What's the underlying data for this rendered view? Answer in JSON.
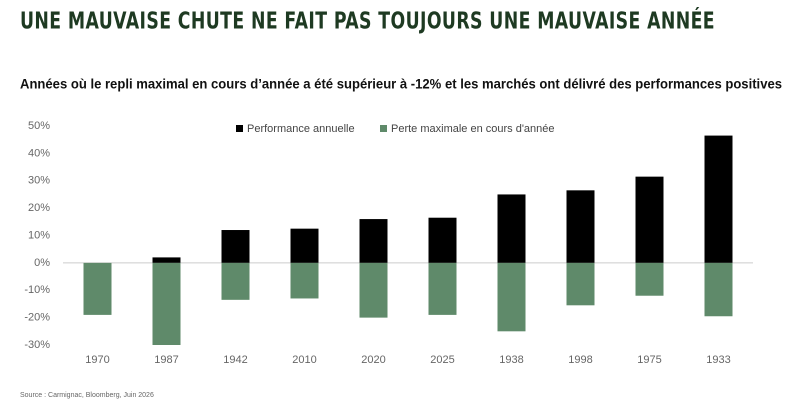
{
  "chart_data": {
    "type": "bar",
    "title": "UNE MAUVAISE CHUTE NE FAIT PAS TOUJOURS UNE MAUVAISE ANNÉE",
    "subtitle": "Années où le repli maximal en cours d’année a été supérieur à -12% et les marchés ont délivré des performances positives",
    "categories": [
      "1970",
      "1987",
      "1942",
      "2010",
      "2020",
      "2025",
      "1938",
      "1998",
      "1975",
      "1933"
    ],
    "series": [
      {
        "name": "Performance annuelle",
        "color": "#000000",
        "values": [
          0,
          2,
          12,
          12.5,
          16,
          16.5,
          25,
          26.5,
          31.5,
          46.5
        ]
      },
      {
        "name": "Perte maximale en cours d'année",
        "color": "#5f8a6a",
        "values": [
          -19,
          -30,
          -13.5,
          -13,
          -20,
          -19,
          -25,
          -15.5,
          -12,
          -19.5
        ]
      }
    ],
    "ylim": [
      -30,
      50
    ],
    "yticks": [
      {
        "value": -30,
        "label": "-30%"
      },
      {
        "value": -20,
        "label": "-20%"
      },
      {
        "value": -10,
        "label": "-10%"
      },
      {
        "value": 0,
        "label": "0%"
      },
      {
        "value": 10,
        "label": "10%"
      },
      {
        "value": 20,
        "label": "20%"
      },
      {
        "value": 30,
        "label": "30%"
      },
      {
        "value": 40,
        "label": "40%"
      },
      {
        "value": 50,
        "label": "50%"
      }
    ],
    "legend": "top",
    "source": "Source : Carmignac, Bloomberg, Juin 2026"
  }
}
